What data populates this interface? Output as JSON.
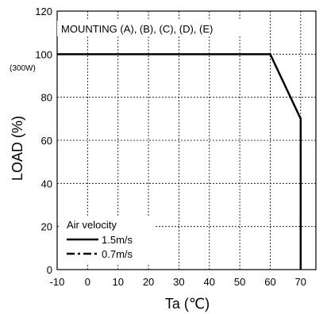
{
  "chart_data": {
    "type": "line",
    "title": "",
    "xlabel": "Ta (℃)",
    "ylabel": "LOAD (%)",
    "xlim": [
      -10,
      75
    ],
    "ylim": [
      0,
      120
    ],
    "x_ticks": [
      -10,
      0,
      10,
      20,
      30,
      40,
      50,
      60,
      70
    ],
    "y_ticks": [
      0,
      20,
      40,
      60,
      80,
      100,
      120
    ],
    "y_tick_note": "(300W)",
    "grid": true,
    "annotation": "MOUNTING (A), (B), (C), (D), (E)",
    "legend_title": "Air velocity",
    "legend_position": "bottom-left",
    "series": [
      {
        "name": "1.5m/s",
        "style": "solid",
        "color": "#000000",
        "x": [
          -10,
          60,
          70,
          70
        ],
        "y": [
          100,
          100,
          70,
          0
        ]
      },
      {
        "name": "0.7m/s",
        "style": "dash-dot",
        "color": "#000000",
        "x": [],
        "y": []
      }
    ]
  }
}
